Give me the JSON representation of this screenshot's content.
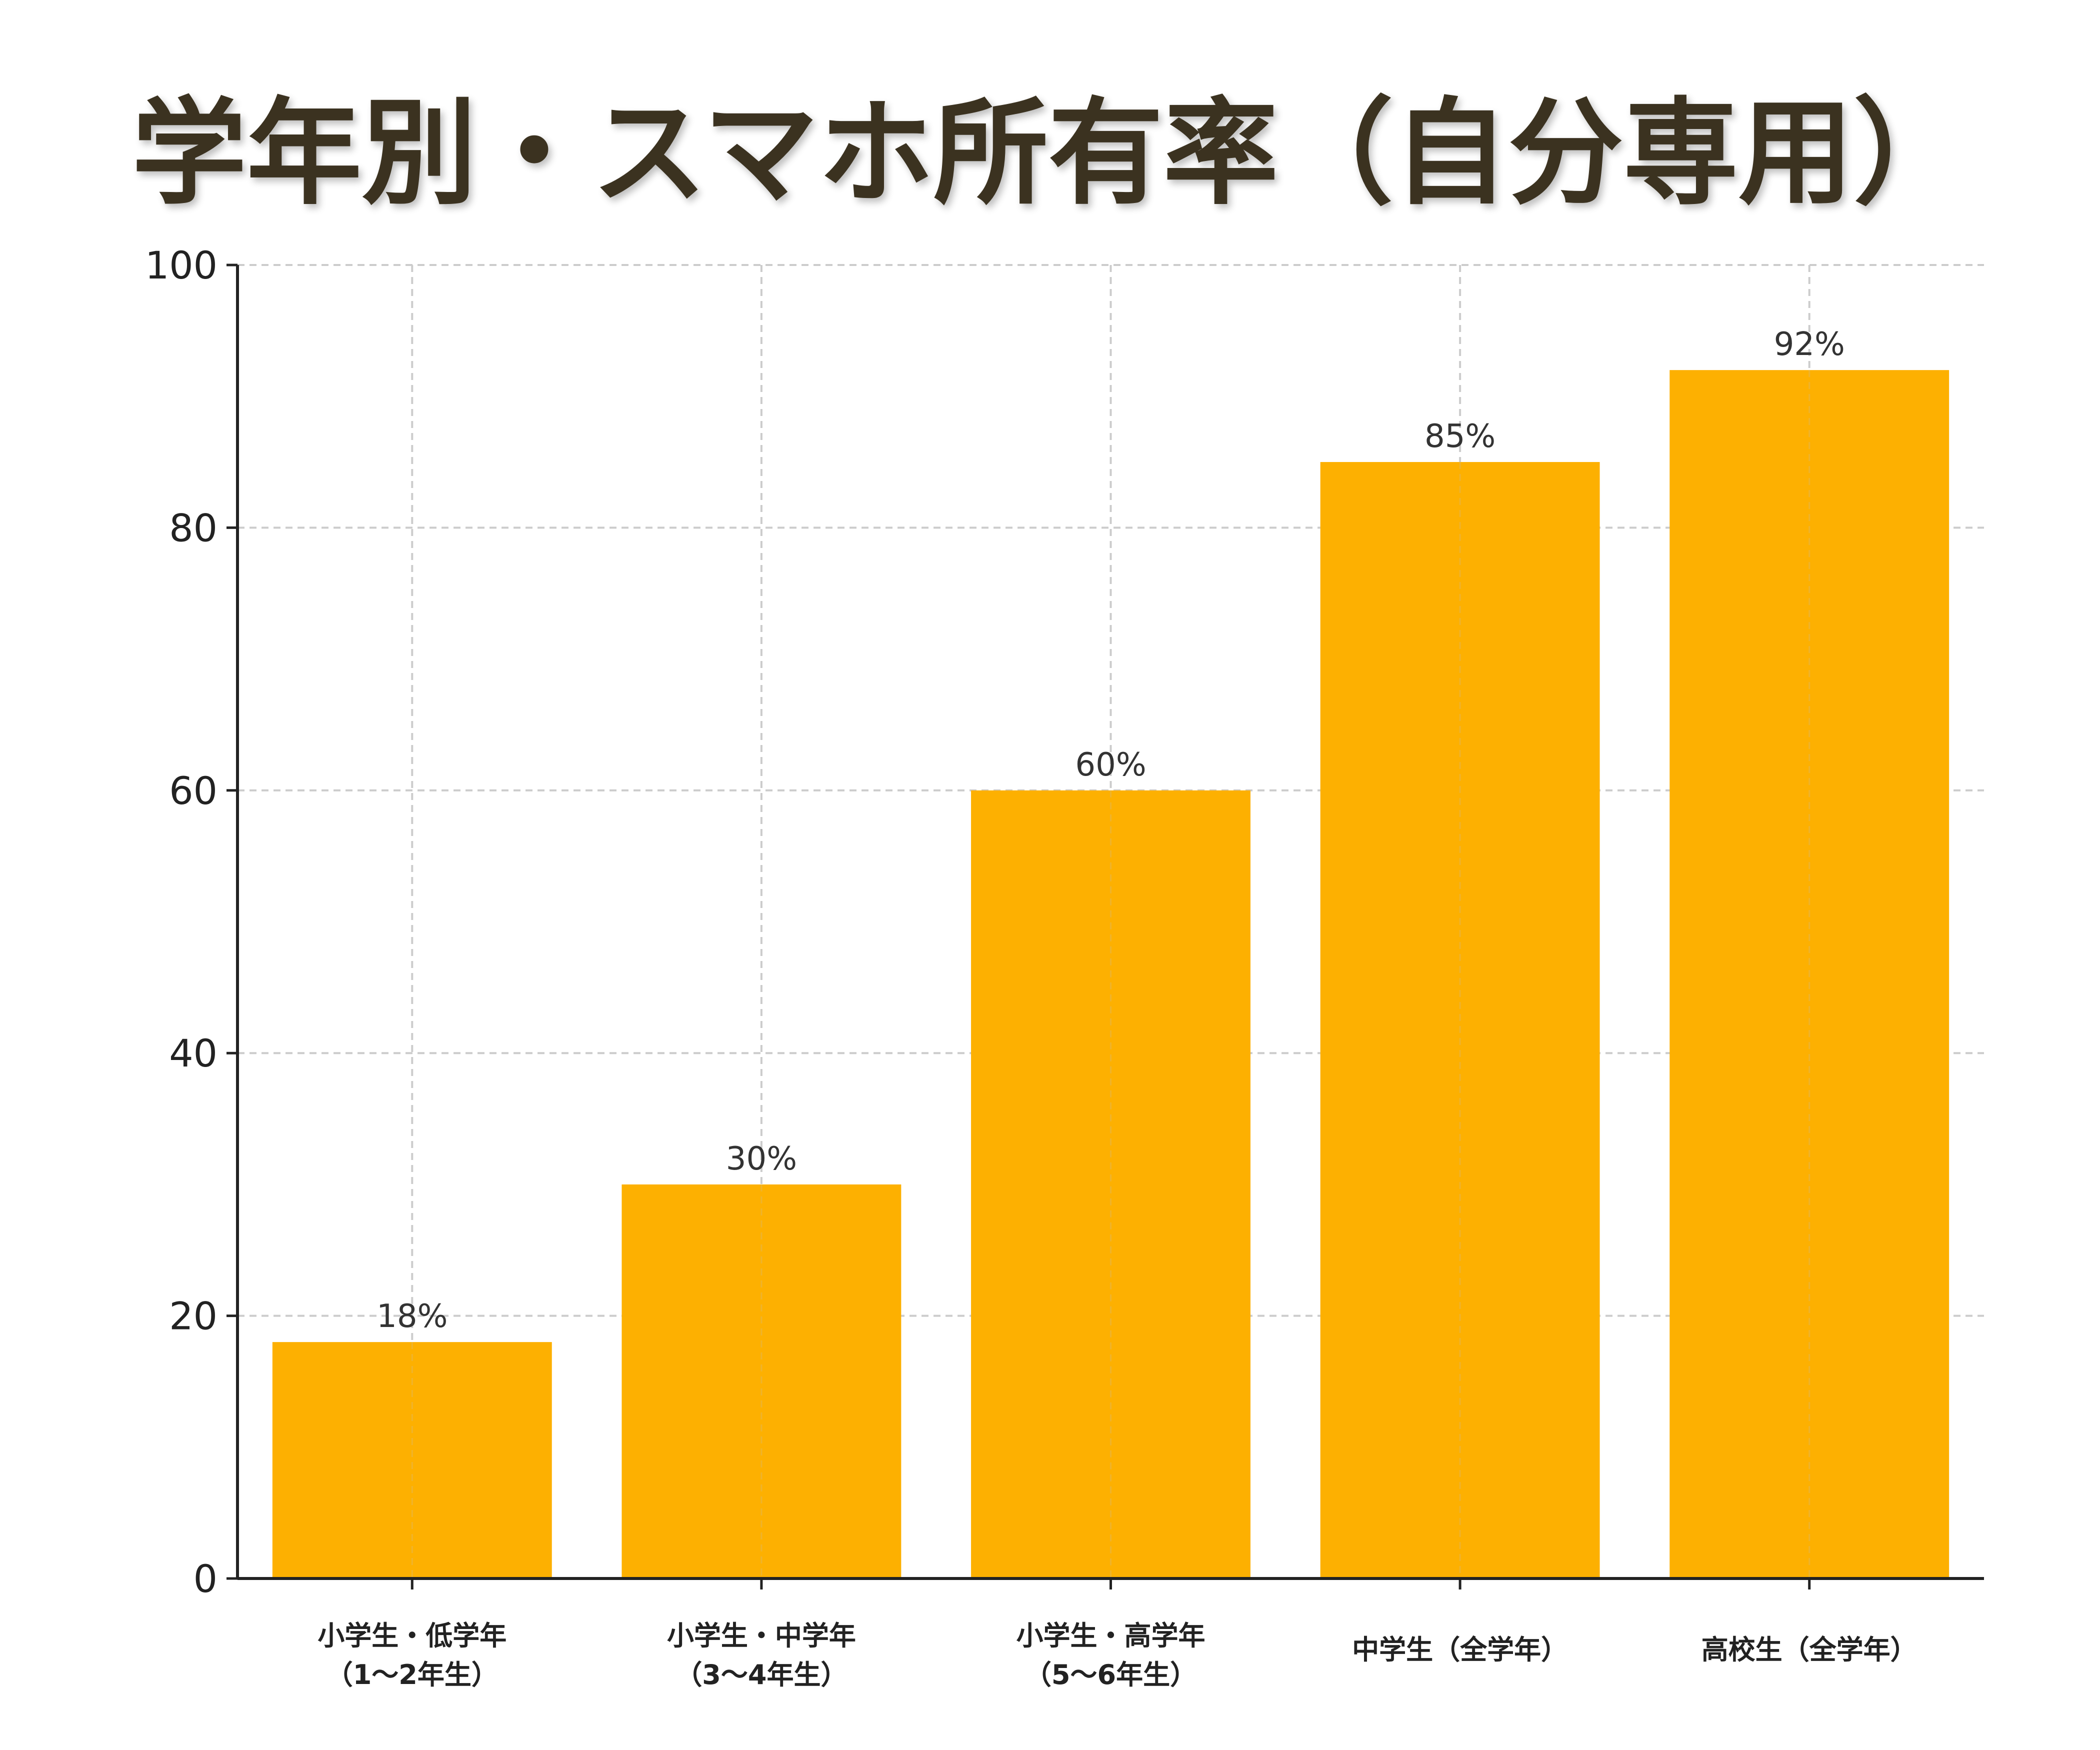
{
  "chart_data": {
    "type": "bar",
    "title": "学年別・スマホ所有率（自分専用）",
    "xlabel": "",
    "ylabel": "",
    "categories": [
      [
        "小学生・低学年",
        "（1〜2年生）"
      ],
      [
        "小学生・中学年",
        "（3〜4年生）"
      ],
      [
        "小学生・高学年",
        "（5〜6年生）"
      ],
      [
        "中学生（全学年）"
      ],
      [
        "高校生（全学年）"
      ]
    ],
    "values": [
      18,
      30,
      60,
      85,
      92
    ],
    "data_labels": [
      "18%",
      "30%",
      "60%",
      "85%",
      "92%"
    ],
    "ylim": [
      0,
      100
    ],
    "yticks": [
      0,
      20,
      40,
      60,
      80,
      100
    ],
    "grid": true,
    "bar_color": "#fdb001"
  }
}
